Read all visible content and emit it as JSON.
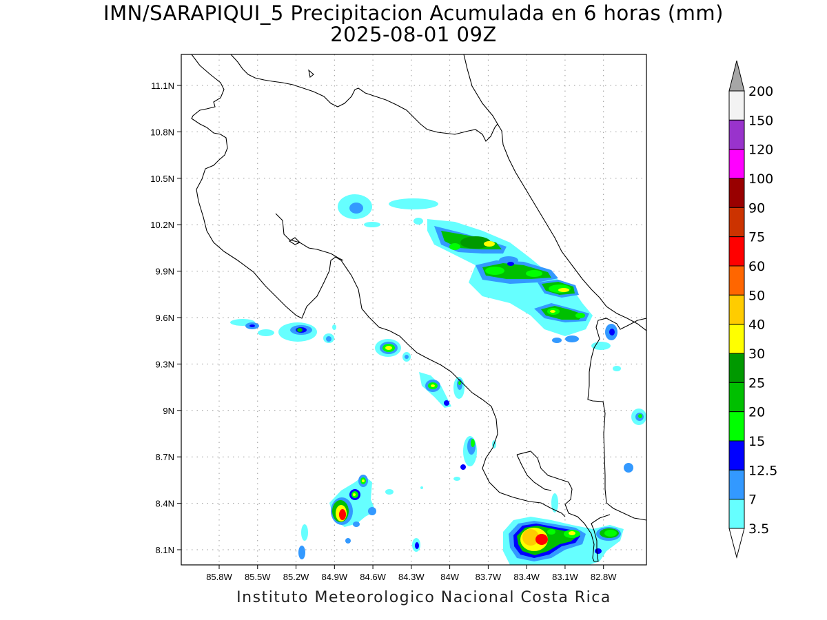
{
  "title": {
    "line1": "IMN/SARAPIQUI_5 Precipitacion Acumulada en 6 horas (mm)",
    "line2": "2025-08-01 09Z"
  },
  "footer": "Instituto Meteorologico Nacional Costa Rica",
  "map": {
    "lon_range": [
      -86.0,
      -82.6
    ],
    "lat_range": [
      8.0,
      11.2
    ],
    "x_ticks": [
      "85.8W",
      "85.5W",
      "85.2W",
      "84.9W",
      "84.6W",
      "84.3W",
      "84W",
      "83.7W",
      "83.4W",
      "83.1W",
      "82.8W"
    ],
    "y_ticks": [
      "11.1N",
      "10.8N",
      "10.5N",
      "10.2N",
      "9.9N",
      "9.6N",
      "9.3N",
      "9N",
      "8.7N",
      "8.4N",
      "8.1N"
    ],
    "grid": "dotted"
  },
  "colorbar": {
    "labels": [
      "200",
      "150",
      "120",
      "100",
      "90",
      "75",
      "60",
      "50",
      "40",
      "30",
      "25",
      "20",
      "15",
      "12.5",
      "7",
      "3.5"
    ],
    "colors": [
      "#f3f3f3",
      "#9933cc",
      "#ff00ff",
      "#990000",
      "#cc3300",
      "#ff0000",
      "#ff6600",
      "#ffcc00",
      "#ffff00",
      "#009900",
      "#00bf00",
      "#00ff00",
      "#0000ff",
      "#3399ff",
      "#66ffff"
    ],
    "top_arrow_color": "#a6a6a6",
    "bottom_arrow_color": "#ffffff"
  },
  "legend_palette": {
    "c35": "#66ffff",
    "c7": "#3399ff",
    "c125": "#0000ff",
    "c15": "#00ff00",
    "c20": "#00bf00",
    "c25": "#009900",
    "c30": "#ffff00",
    "c40": "#ffcc00",
    "c60": "#ff0000"
  }
}
